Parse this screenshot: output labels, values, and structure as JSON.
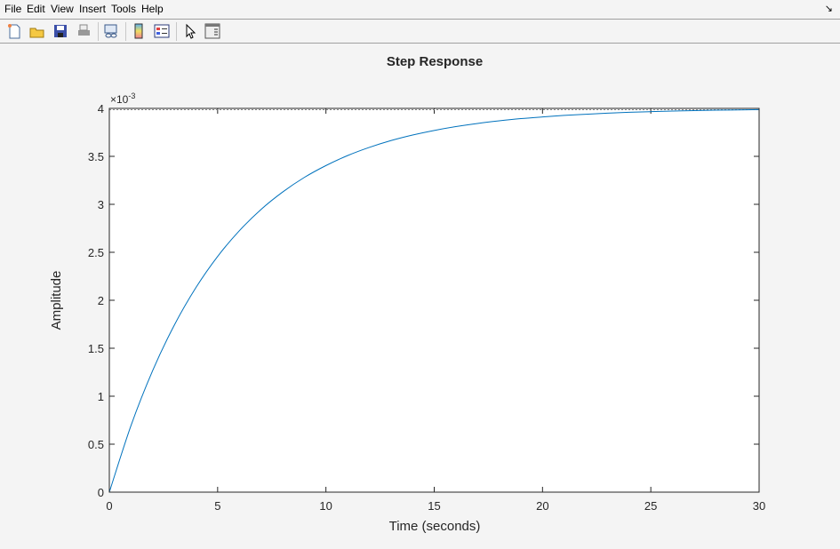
{
  "menubar": {
    "items": [
      "File",
      "Edit",
      "View",
      "Insert",
      "Tools",
      "Help"
    ],
    "dock_icon": "dock-arrow-icon"
  },
  "toolbar": {
    "icons": [
      "new-figure-icon",
      "open-file-icon",
      "save-icon",
      "print-icon",
      "link-plot-icon",
      "colorbar-icon",
      "legend-icon",
      "pointer-icon",
      "property-editor-icon"
    ]
  },
  "colors": {
    "line": "#0072bd",
    "background": "#f4f4f4",
    "axes": "#262626"
  },
  "chart_data": {
    "type": "line",
    "title": "Step Response",
    "xlabel": "Time (seconds)",
    "ylabel": "Amplitude",
    "y_exponent": "×10",
    "y_exponent_power": "-3",
    "xlim": [
      0,
      30
    ],
    "ylim": [
      0,
      4
    ],
    "xticks": [
      "0",
      "5",
      "10",
      "15",
      "20",
      "25",
      "30"
    ],
    "yticks": [
      "0",
      "0.5",
      "1",
      "1.5",
      "2",
      "2.5",
      "3",
      "3.5",
      "4"
    ],
    "grid": false,
    "steady_state_line": 4,
    "x": [
      0,
      1,
      2,
      3,
      4,
      5,
      6,
      7,
      8,
      9,
      10,
      11,
      12,
      13,
      14,
      15,
      16,
      17,
      18,
      19,
      20,
      21,
      22,
      23,
      24,
      25,
      26,
      27,
      28,
      29,
      30
    ],
    "y": [
      0,
      0.694,
      1.267,
      1.741,
      2.133,
      2.457,
      2.724,
      2.946,
      3.128,
      3.28,
      3.404,
      3.508,
      3.593,
      3.664,
      3.722,
      3.77,
      3.81,
      3.843,
      3.87,
      3.893,
      3.911,
      3.927,
      3.939,
      3.95,
      3.959,
      3.966,
      3.972,
      3.977,
      3.981,
      3.984,
      3.987
    ]
  }
}
